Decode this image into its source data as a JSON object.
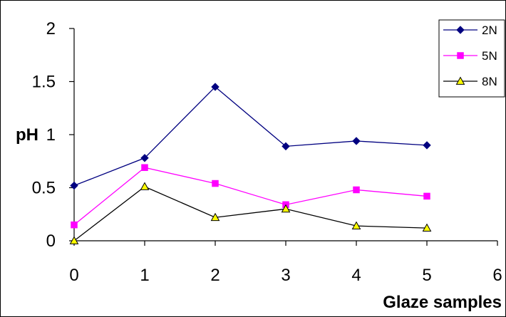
{
  "chart_data": {
    "type": "line",
    "title": "",
    "xlabel": "Glaze samples",
    "ylabel": "pH",
    "xlim": [
      0,
      6
    ],
    "ylim": [
      0,
      2
    ],
    "x_ticks": [
      "0",
      "1",
      "2",
      "3",
      "4",
      "5",
      "6"
    ],
    "y_ticks": [
      "0",
      "0.5",
      "1",
      "1.5",
      "2"
    ],
    "grid": false,
    "legend_position": "top-right",
    "series": [
      {
        "name": "2N",
        "color": "#000080",
        "marker": "diamond",
        "x": [
          0,
          1,
          2,
          3,
          4,
          5
        ],
        "y": [
          0.52,
          0.78,
          1.45,
          0.89,
          0.94,
          0.9
        ]
      },
      {
        "name": "5N",
        "color": "#ff00ff",
        "marker": "square",
        "x": [
          0,
          1,
          2,
          3,
          4,
          5
        ],
        "y": [
          0.15,
          0.69,
          0.54,
          0.34,
          0.48,
          0.42
        ]
      },
      {
        "name": "8N",
        "color": "#000000",
        "marker": "triangle",
        "marker_fill": "#ffff00",
        "x": [
          0,
          1,
          2,
          3,
          4,
          5
        ],
        "y": [
          0.0,
          0.51,
          0.22,
          0.3,
          0.14,
          0.12
        ]
      }
    ]
  }
}
